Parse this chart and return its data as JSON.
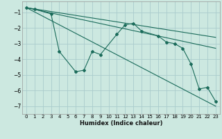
{
  "xlabel": "Humidex (Indice chaleur)",
  "ylabel": "",
  "bg_color": "#cce8e0",
  "grid_color": "#aacccc",
  "line_color": "#1a6b5a",
  "xlim": [
    -0.5,
    23.5
  ],
  "ylim": [
    -7.5,
    -0.3
  ],
  "yticks": [
    -7,
    -6,
    -5,
    -4,
    -3,
    -2,
    -1
  ],
  "xticks": [
    0,
    1,
    2,
    3,
    4,
    5,
    6,
    7,
    8,
    9,
    10,
    11,
    12,
    13,
    14,
    15,
    16,
    17,
    18,
    19,
    20,
    21,
    22,
    23
  ],
  "series_main": {
    "x": [
      0,
      1,
      3,
      4,
      6,
      7,
      8,
      9,
      11,
      12,
      13,
      14,
      16,
      17,
      18,
      19,
      20,
      21,
      22,
      23
    ],
    "y": [
      -0.7,
      -0.8,
      -1.1,
      -3.5,
      -4.8,
      -4.7,
      -3.5,
      -3.7,
      -2.4,
      -1.8,
      -1.7,
      -2.2,
      -2.5,
      -2.9,
      -3.0,
      -3.3,
      -4.3,
      -5.9,
      -5.8,
      -6.7
    ]
  },
  "series_lines": [
    {
      "x": [
        0,
        23
      ],
      "y": [
        -0.7,
        -3.3
      ]
    },
    {
      "x": [
        0,
        23
      ],
      "y": [
        -0.7,
        -2.6
      ]
    },
    {
      "x": [
        0,
        23
      ],
      "y": [
        -0.7,
        -7.0
      ]
    }
  ]
}
